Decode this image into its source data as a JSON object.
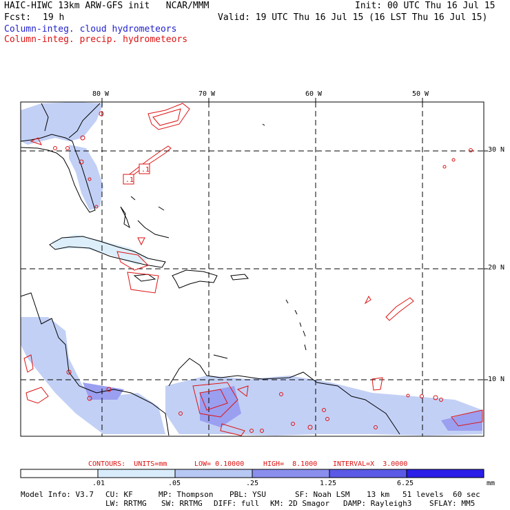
{
  "header": {
    "model_line": "HAIC-HIWC 13km ARW-GFS init   NCAR/MMM",
    "init_line": "Init: 00 UTC Thu 16 Jul 15",
    "fcst_label": "Fcst:",
    "fcst_value": "19 h",
    "valid_line": "Valid: 19 UTC Thu 16 Jul 15 (16 LST Thu 16 Jul 15)",
    "field_cloud": "Column-integ. cloud hydrometeors",
    "field_precip": "Column-integ. precip. hydrometeors"
  },
  "map": {
    "lon_labels": [
      "80 W",
      "70 W",
      "60 W",
      "50 W"
    ],
    "lat_labels": [
      "30 N",
      "20 N",
      "10 N"
    ],
    "contour_labels": [
      ".1",
      ".1"
    ],
    "colors": {
      "cloud": "#6a6ae8",
      "precip": "#dd1111",
      "coast": "#000000"
    }
  },
  "contours": {
    "units_text": "CONTOURS:  UNITS=mm",
    "low_text": "LOW= 0.10000",
    "high_text": "HIGH=  8.1000",
    "interval_text": "INTERVAL=X  3.0000"
  },
  "colorbar": {
    "labels": [
      ".01",
      ".05",
      ".25",
      "1.25",
      "6.25",
      "mm"
    ],
    "colors": [
      "#ffffff",
      "#d8ecfb",
      "#b8c8f4",
      "#8a8fee",
      "#5a5ae6",
      "#2a1ee8"
    ]
  },
  "footer": {
    "model_info": "Model Info: V3.7",
    "cu": "CU: KF",
    "mp": "MP: Thompson",
    "pbl": "PBL: YSU",
    "sf": "SF: Noah LSM",
    "res": "13 km",
    "levels": "51 levels",
    "dt": "60 sec",
    "lw": "LW: RRTMG",
    "sw": "SW: RRTMG",
    "diff": "DIFF: full",
    "km": "KM: 2D Smagor",
    "damp": "DAMP: Rayleigh3",
    "sflay": "SFLAY: MM5"
  }
}
